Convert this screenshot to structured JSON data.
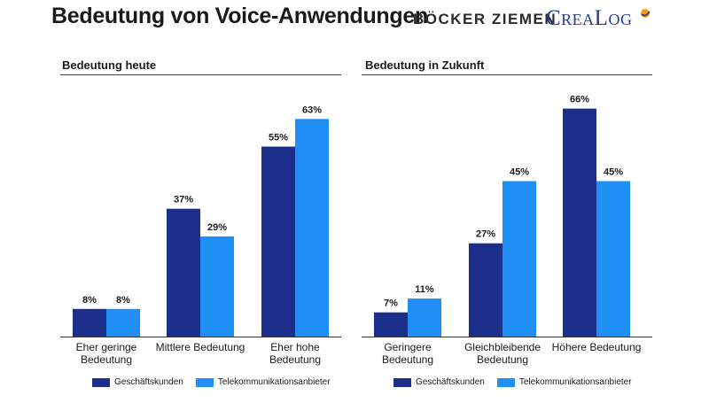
{
  "header": {
    "title": "Bedeutung von Voice-Anwendungen",
    "logo_boecker": "BÖCKER ZIEMEN",
    "logo_crealog": "CreaLog"
  },
  "colors": {
    "geschaeftskunden": "#1b2e8a",
    "telekom": "#1f8ff5"
  },
  "legend": {
    "series1": "Geschäftskunden",
    "series2": "Telekommunikationsanbieter"
  },
  "chart_data": [
    {
      "type": "bar",
      "title": "Bedeutung heute",
      "categories": [
        [
          "Eher geringe",
          "Bedeutung"
        ],
        [
          "Mittlere Bedeutung"
        ],
        [
          "Eher hohe",
          "Bedeutung"
        ]
      ],
      "series": [
        {
          "name": "Geschäftskunden",
          "values": [
            8,
            37,
            55
          ]
        },
        {
          "name": "Telekommunikationsanbieter",
          "values": [
            8,
            29,
            63
          ]
        }
      ],
      "ylim": [
        0,
        70
      ],
      "value_suffix": "%"
    },
    {
      "type": "bar",
      "title": "Bedeutung in Zukunft",
      "categories": [
        [
          "Geringere",
          "Bedeutung"
        ],
        [
          "Gleichbleibende",
          "Bedeutung"
        ],
        [
          "Höhere Bedeutung"
        ]
      ],
      "series": [
        {
          "name": "Geschäftskunden",
          "values": [
            7,
            27,
            66
          ]
        },
        {
          "name": "Telekommunikationsanbieter",
          "values": [
            11,
            45,
            45
          ]
        }
      ],
      "ylim": [
        0,
        70
      ],
      "value_suffix": "%"
    }
  ]
}
